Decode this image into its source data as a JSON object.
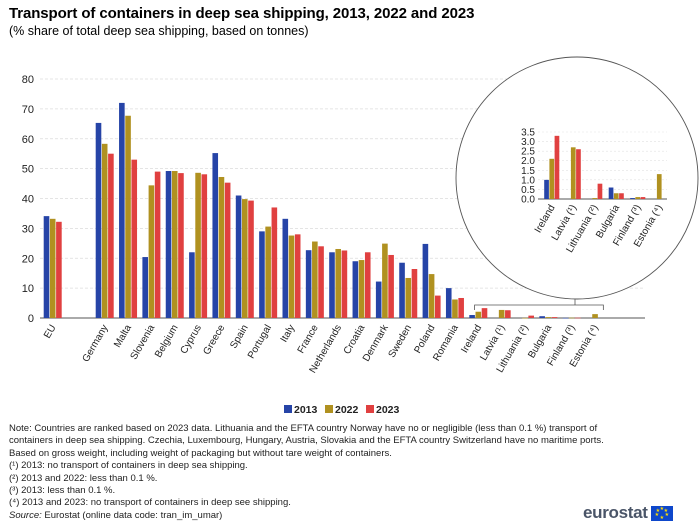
{
  "title": "Transport of containers in deep sea shipping, 2013, 2022 and 2023",
  "subtitle": "(% share of total deep sea shipping, based on tonnes)",
  "chart_data": {
    "type": "bar",
    "categories": [
      "EU",
      "Germany",
      "Malta",
      "Slovenia",
      "Belgium",
      "Cyprus",
      "Greece",
      "Spain",
      "Portugal",
      "Italy",
      "France",
      "Netherlands",
      "Croatia",
      "Denmark",
      "Sweden",
      "Poland",
      "Romania",
      "Ireland",
      "Latvia (¹)",
      "Lithuania (²)",
      "Bulgaria",
      "Finland (³)",
      "Estonia (⁴)"
    ],
    "series": [
      {
        "name": "2013",
        "color": "#2644a7",
        "values": [
          34.1,
          65.3,
          72.0,
          20.4,
          49.2,
          22.0,
          55.2,
          41.0,
          29.0,
          33.2,
          22.7,
          22.0,
          19.0,
          12.2,
          18.5,
          24.8,
          10.0,
          1.0,
          0.0,
          0.0,
          0.6,
          0.05,
          0.0
        ]
      },
      {
        "name": "2022",
        "color": "#b09120",
        "values": [
          33.2,
          58.3,
          67.7,
          44.4,
          49.2,
          48.6,
          47.2,
          39.8,
          30.6,
          27.6,
          25.6,
          23.1,
          19.4,
          24.9,
          13.4,
          14.7,
          6.2,
          2.1,
          2.7,
          0.05,
          0.3,
          0.1,
          1.3
        ]
      },
      {
        "name": "2023",
        "color": "#e04040",
        "values": [
          32.2,
          55.0,
          53.0,
          49.0,
          48.5,
          48.1,
          45.3,
          39.3,
          37.0,
          28.0,
          24.0,
          22.6,
          22.0,
          21.1,
          16.4,
          7.5,
          6.7,
          3.3,
          2.6,
          0.8,
          0.3,
          0.1,
          0.0
        ]
      }
    ],
    "ylim": [
      0,
      80
    ],
    "yticks": [
      0,
      10,
      20,
      30,
      40,
      50,
      60,
      70,
      80
    ],
    "legend": [
      "2013",
      "2022",
      "2023"
    ],
    "legend_position": "bottom-center",
    "inset": {
      "categories": [
        "Ireland",
        "Latvia (¹)",
        "Lithuania (²)",
        "Bulgaria",
        "Finland (³)",
        "Estonia (⁴)"
      ],
      "ylim": [
        0,
        3.5
      ],
      "yticks": [
        "0.0",
        "0.5",
        "1.0",
        "1.5",
        "2.0",
        "2.5",
        "3.0",
        "3.5"
      ]
    }
  },
  "notes": [
    "Note: Countries are ranked based on 2023 data. Lithuania and the EFTA country Norway have no or negligible (less than 0.1 %) transport of containers in deep sea shipping. Czechia, Luxembourg, Hungary, Austria, Slovakia and the EFTA country Switzerland have no maritime ports. Based on gross weight, including weight of packaging but without tare weight of containers.",
    "(¹) 2013: no transport of containers in deep sea shipping.",
    "(²) 2013 and 2022: less than 0.1 %.",
    "(³) 2013: less than 0.1 %.",
    "(⁴) 2013 and 2023: no transport of containers in deep see shipping."
  ],
  "source": {
    "label": "Source:",
    "text": " Eurostat (online data code: tran_im_umar)"
  },
  "logo": "eurostat"
}
